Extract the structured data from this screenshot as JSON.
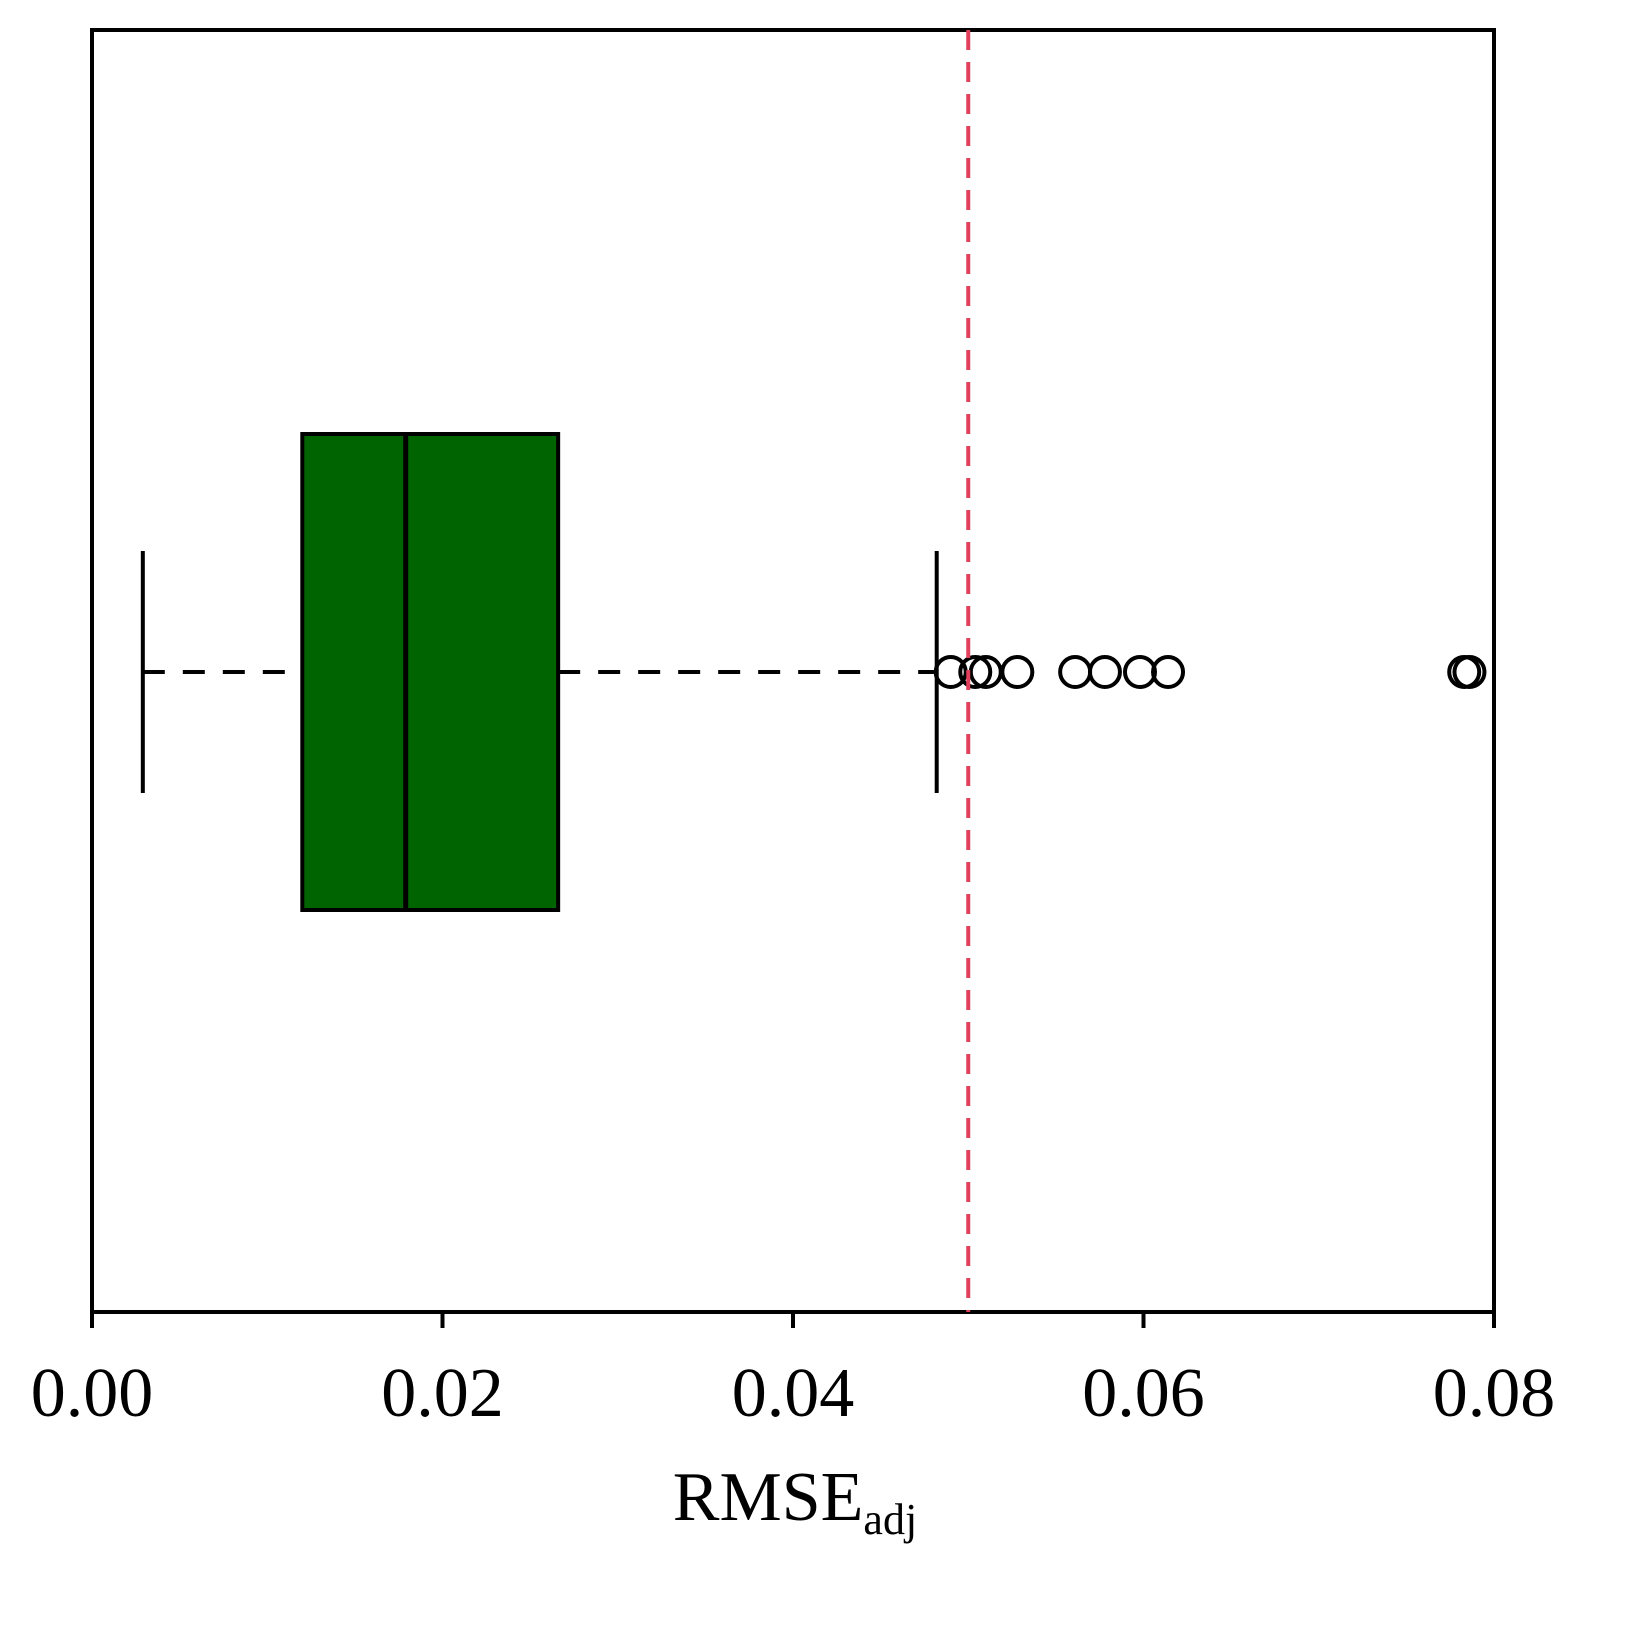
{
  "chart_data": {
    "type": "box",
    "orientation": "horizontal",
    "color": "#006400",
    "xlabel": "RMSE",
    "xlabel_subscript": "adj",
    "boxes": [
      {
        "min": 0.0029,
        "q1": 0.012,
        "median": 0.0179,
        "q3": 0.0266,
        "max": 0.0482,
        "outliers": [
          0.049,
          0.0504,
          0.051,
          0.0528,
          0.0561,
          0.0578,
          0.0598,
          0.0614,
          0.0783,
          0.0786
        ]
      }
    ],
    "xlim": [
      0,
      0.08
    ],
    "xticks": [
      {
        "value": 0,
        "label": "0.00"
      },
      {
        "value": 0.02,
        "label": "0.02"
      },
      {
        "value": 0.04,
        "label": "0.04"
      },
      {
        "value": 0.06,
        "label": "0.06"
      },
      {
        "value": 0.08,
        "label": "0.08"
      }
    ],
    "reference_line": {
      "value": 0.05,
      "color": "#e0405a",
      "style": "dashed"
    }
  }
}
